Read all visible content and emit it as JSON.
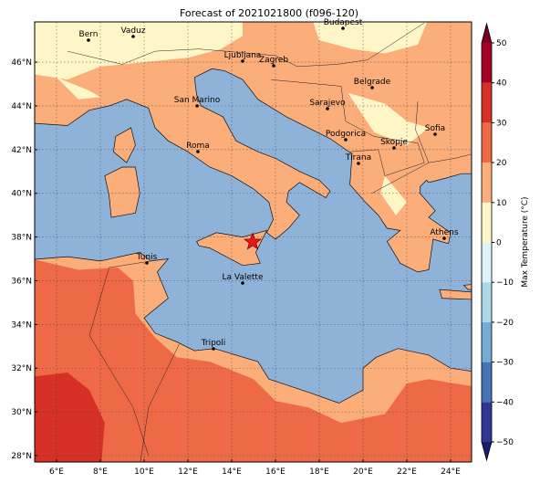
{
  "title": "Forecast of 2021021800 (f096-120)",
  "map": {
    "x_ticks": [
      {
        "value": 6,
        "label": "6°E"
      },
      {
        "value": 8,
        "label": "8°E"
      },
      {
        "value": 10,
        "label": "10°E"
      },
      {
        "value": 12,
        "label": "12°E"
      },
      {
        "value": 14,
        "label": "14°E"
      },
      {
        "value": 16,
        "label": "16°E"
      },
      {
        "value": 18,
        "label": "18°E"
      },
      {
        "value": 20,
        "label": "20°E"
      },
      {
        "value": 22,
        "label": "22°E"
      },
      {
        "value": 24,
        "label": "24°E"
      }
    ],
    "y_ticks": [
      {
        "value": 28,
        "label": "28°N"
      },
      {
        "value": 30,
        "label": "30°N"
      },
      {
        "value": 32,
        "label": "32°N"
      },
      {
        "value": 34,
        "label": "34°N"
      },
      {
        "value": 36,
        "label": "36°N"
      },
      {
        "value": 38,
        "label": "38°N"
      },
      {
        "value": 40,
        "label": "40°N"
      },
      {
        "value": 42,
        "label": "42°N"
      },
      {
        "value": 44,
        "label": "44°N"
      },
      {
        "value": 46,
        "label": "46°N"
      }
    ],
    "cities": [
      "Bern",
      "Vaduz",
      "Budapest",
      "Ljubljana",
      "Zagreb",
      "Belgrade",
      "Sarajevo",
      "San Marino",
      "Roma",
      "Podgorica",
      "Skopje",
      "Sofia",
      "Tirana",
      "Athens",
      "Tunis",
      "La Valette",
      "Tripoli"
    ]
  },
  "colorbar": {
    "label": "Max Temperature (°C)",
    "lim": [
      -50,
      50
    ],
    "ticks": [
      50,
      40,
      30,
      20,
      10,
      0,
      {
        "value": -10,
        "label": "−10"
      },
      {
        "value": -20,
        "label": "−20"
      },
      {
        "value": -30,
        "label": "−30"
      },
      {
        "value": -40,
        "label": "−40"
      },
      {
        "value": -50,
        "label": "−50"
      }
    ],
    "colors": [
      "#313695",
      "#4575b4",
      "#74add1",
      "#abd9e9",
      "#e0f3f8",
      "#fff6c8",
      "#fbad7a",
      "#ee6a47",
      "#d73027",
      "#a50026"
    ],
    "under_color": "#1a1f6b",
    "over_color": "#7a0020"
  }
}
